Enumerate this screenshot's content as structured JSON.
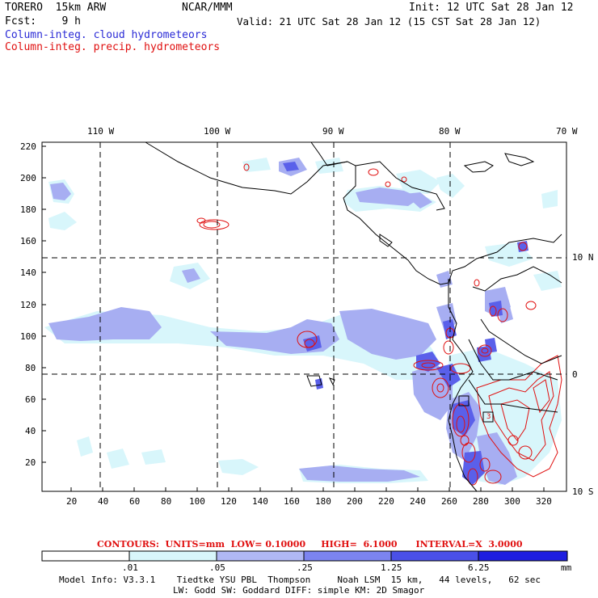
{
  "header": {
    "model": "TORERO  15km ARW",
    "org": "NCAR/MMM",
    "init": "Init: 12 UTC Sat 28 Jan 12",
    "fcst": "Fcst:    9 h",
    "valid": "Valid: 21 UTC Sat 28 Jan 12 (15 CST Sat 28 Jan 12)",
    "legend_cloud": "Column-integ. cloud hydrometeors",
    "legend_precip": "Column-integ. precip. hydrometeors"
  },
  "axes": {
    "top_lon_labels": [
      "110 W",
      "100 W",
      "90 W",
      "80 W",
      "70 W"
    ],
    "right_lat_labels": [
      "10 N",
      "0",
      "10 S"
    ],
    "left_y_ticks": [
      "220",
      "200",
      "180",
      "160",
      "140",
      "120",
      "100",
      "80",
      "60",
      "40",
      "20"
    ],
    "bottom_x_ticks": [
      "20",
      "40",
      "60",
      "80",
      "100",
      "120",
      "140",
      "160",
      "180",
      "200",
      "220",
      "240",
      "260",
      "280",
      "300",
      "320"
    ]
  },
  "contours_line": {
    "text": "CONTOURS:  UNITS=mm  LOW= 0.10000     HIGH=  6.1000      INTERVAL=X  3.0000"
  },
  "colorbar": {
    "labels": [
      ".01",
      ".05",
      ".25",
      "1.25",
      "6.25"
    ],
    "units": "mm",
    "colors": [
      "#ffffff",
      "#d8f6fb",
      "#b0b8f4",
      "#7c84f0",
      "#4a50e8",
      "#1e1ee0"
    ]
  },
  "footer": {
    "line1": "Model Info: V3.3.1    Tiedtke YSU PBL  Thompson     Noah LSM  15 km,   44 levels,   62 sec",
    "line2": "LW: Godd SW: Goddard DIFF: simple KM: 2D Smagor"
  },
  "map_labels": {
    "box_label": "3"
  }
}
